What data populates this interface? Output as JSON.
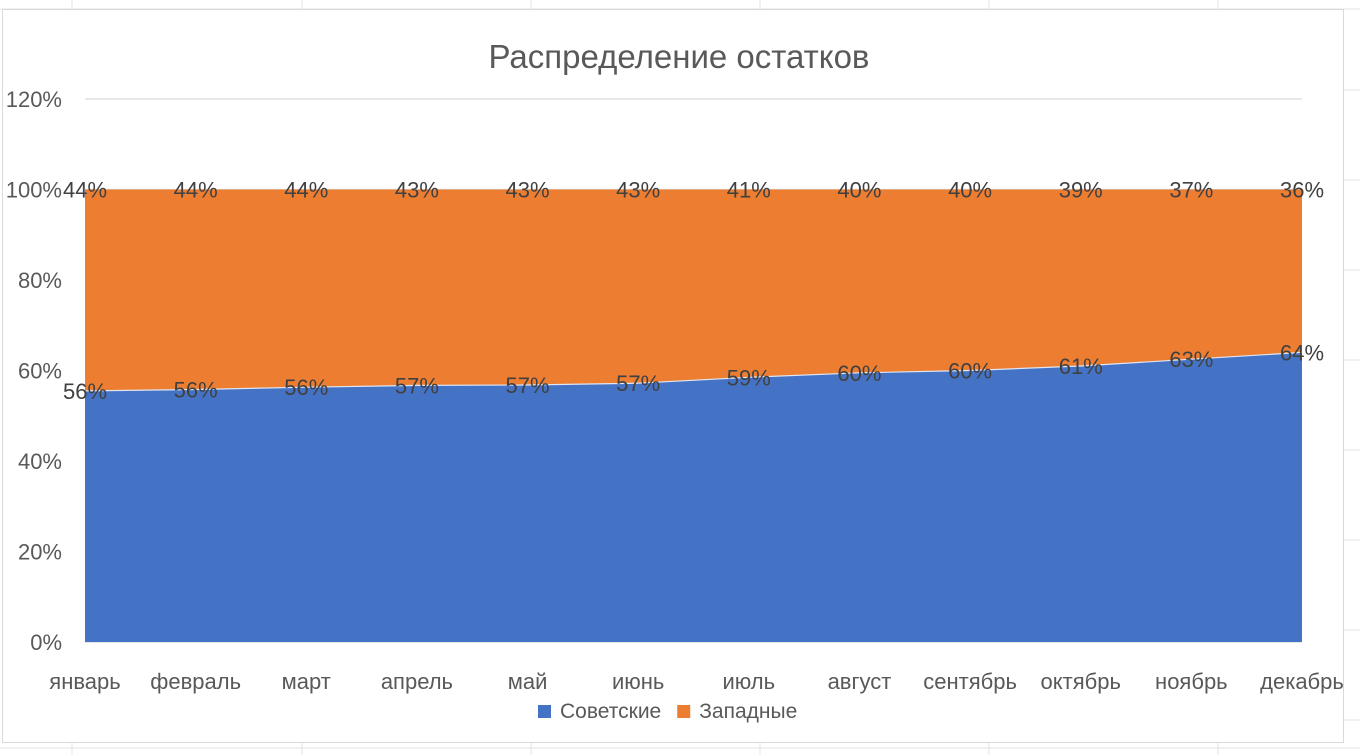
{
  "chart_data": {
    "type": "area",
    "stacked": "percent",
    "title": "Распределение остатков",
    "categories": [
      "январь",
      "февраль",
      "март",
      "апрель",
      "май",
      "июнь",
      "июль",
      "август",
      "сентябрь",
      "октябрь",
      "ноябрь",
      "декабрь"
    ],
    "series": [
      {
        "name": "Советские",
        "color": "#4472c4",
        "values": [
          0.555,
          0.558,
          0.563,
          0.567,
          0.568,
          0.572,
          0.585,
          0.595,
          0.6,
          0.61,
          0.625,
          0.64
        ],
        "labels": [
          "56%",
          "56%",
          "56%",
          "57%",
          "57%",
          "57%",
          "59%",
          "60%",
          "60%",
          "61%",
          "63%",
          "64%"
        ]
      },
      {
        "name": "Западные",
        "color": "#ed7d31",
        "values": [
          0.445,
          0.442,
          0.437,
          0.433,
          0.432,
          0.428,
          0.415,
          0.405,
          0.4,
          0.39,
          0.375,
          0.36
        ],
        "labels": [
          "44%",
          "44%",
          "44%",
          "43%",
          "43%",
          "43%",
          "41%",
          "40%",
          "40%",
          "39%",
          "37%",
          "36%"
        ]
      }
    ],
    "ylim": [
      0,
      1.2
    ],
    "yticks": [
      "0%",
      "20%",
      "40%",
      "60%",
      "80%",
      "100%",
      "120%"
    ],
    "grid": true,
    "legend_position": "bottom"
  }
}
